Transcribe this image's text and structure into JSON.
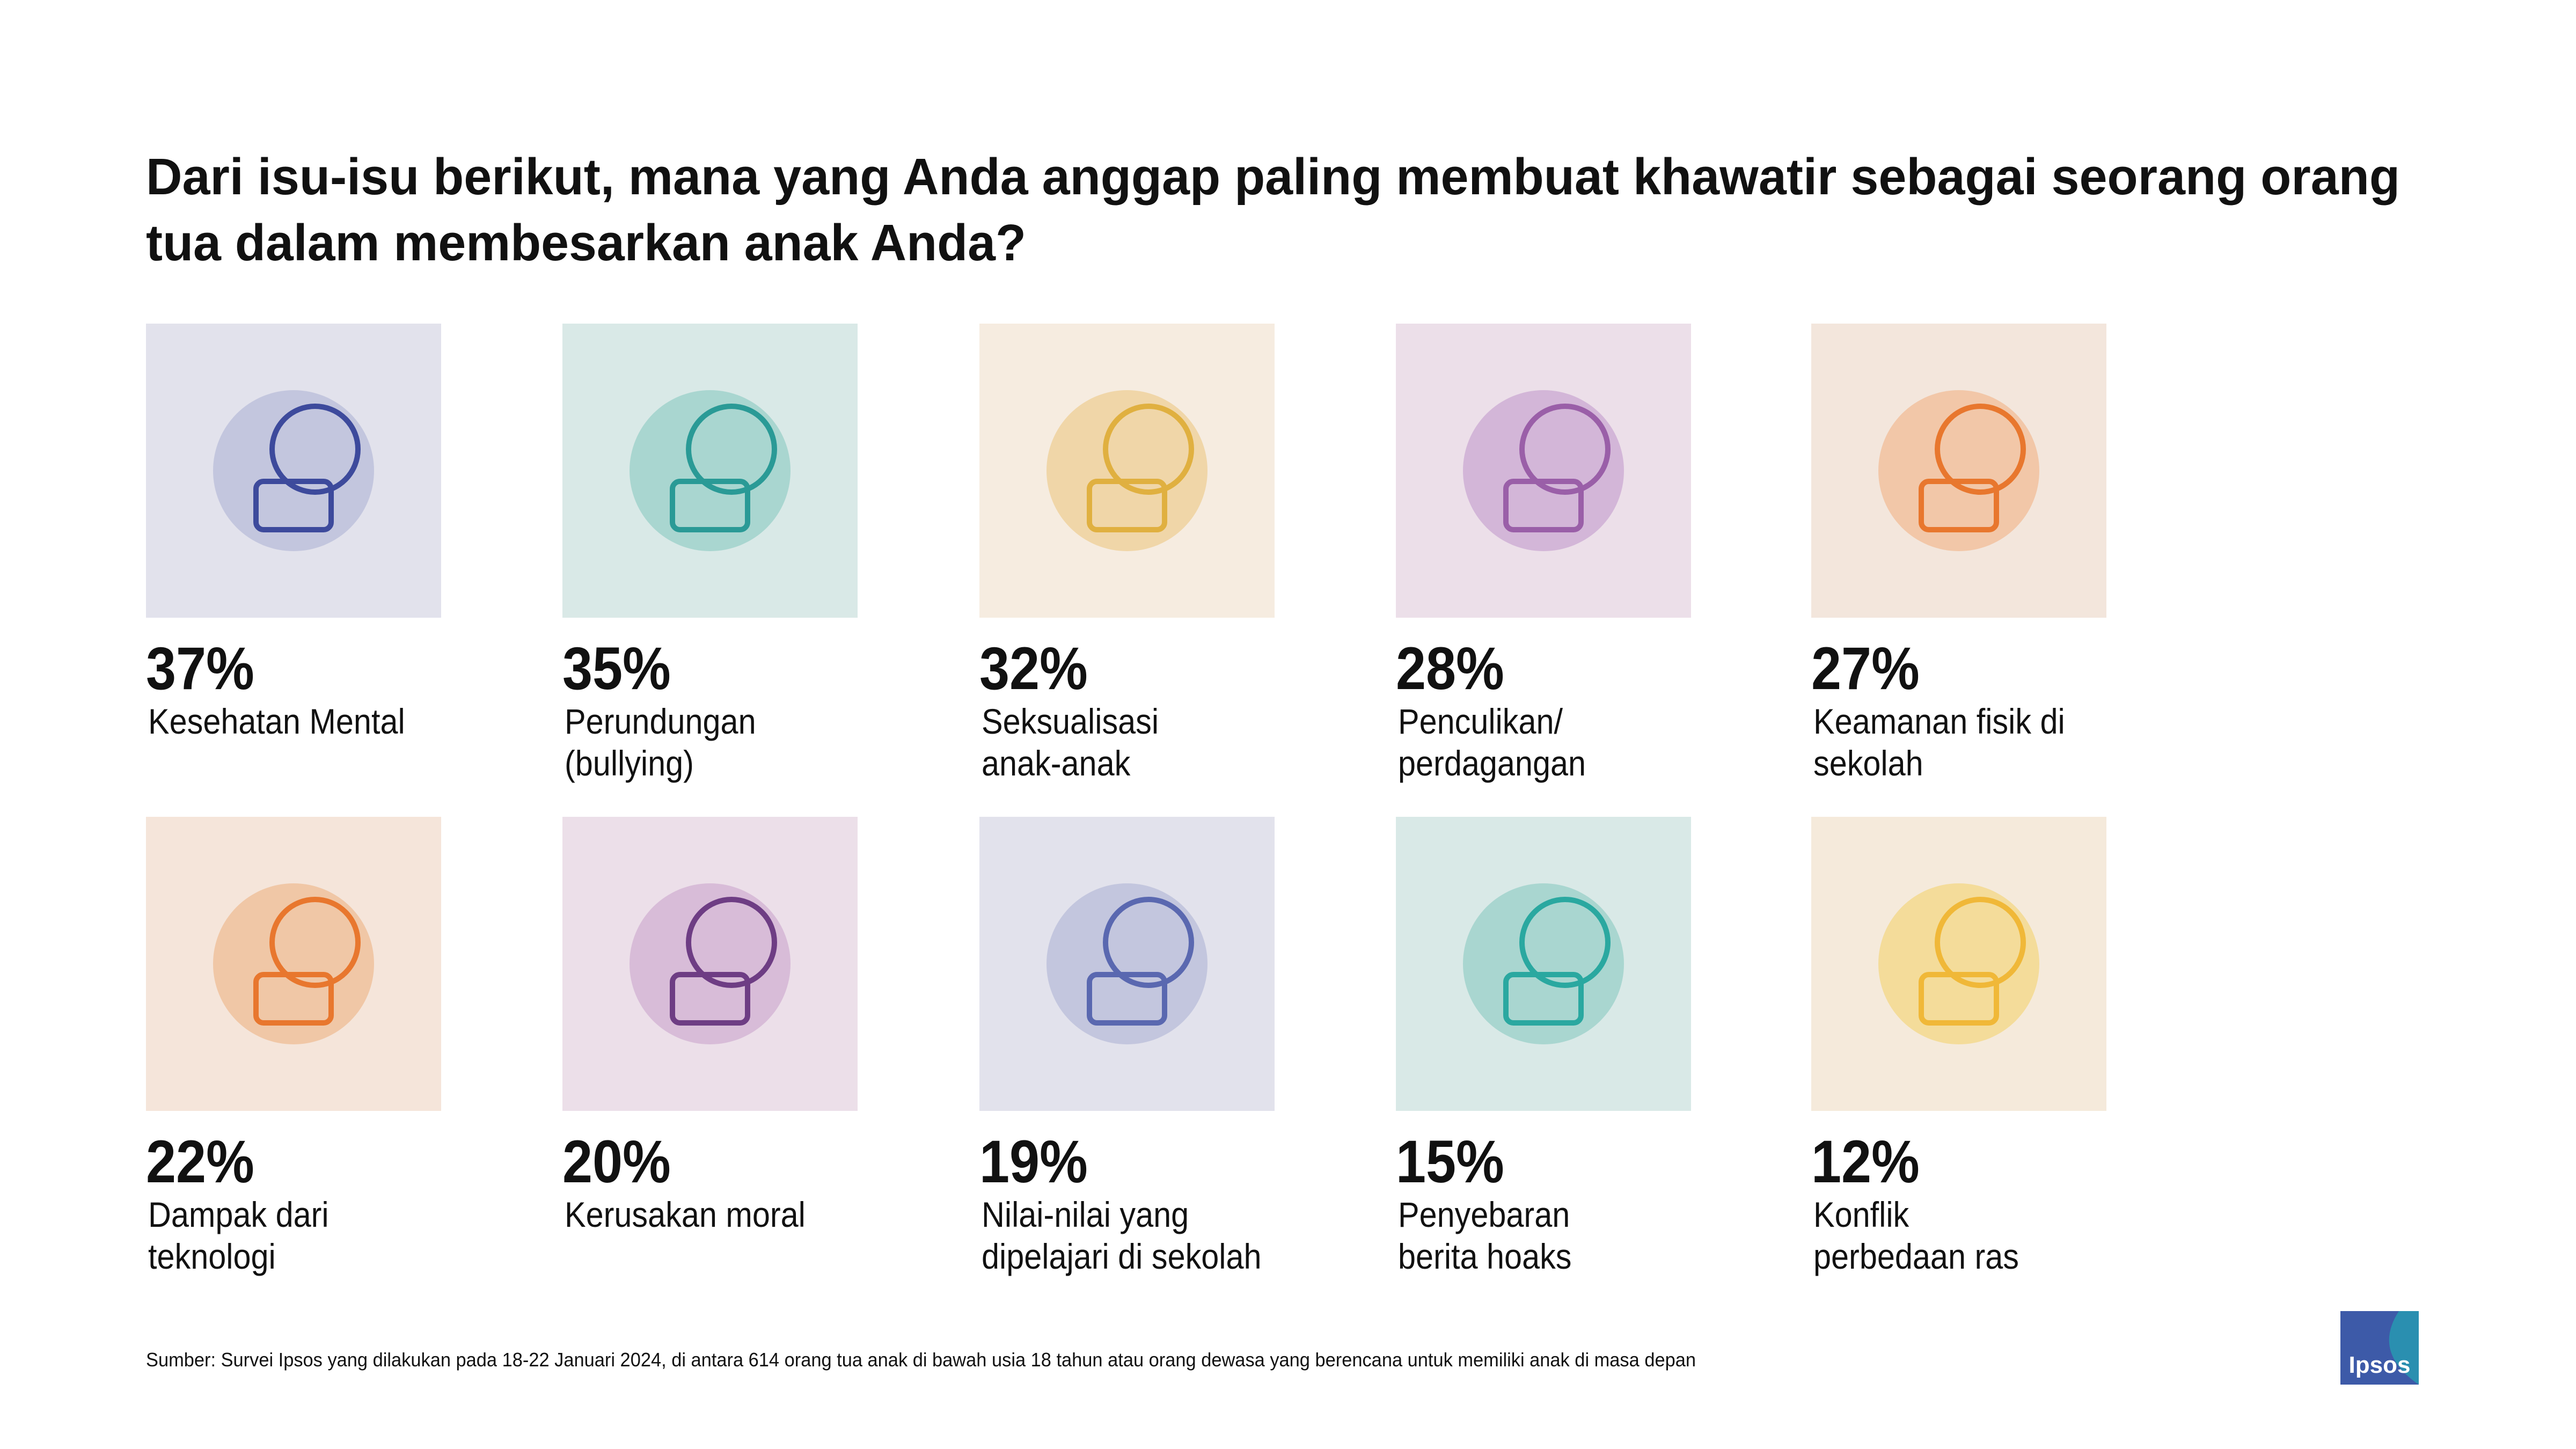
{
  "title": [
    "Dari isu-isu berikut, mana yang Anda anggap paling membuat khawatir sebagai seorang orang",
    "tua dalam membesarkan anak Anda?"
  ],
  "items": [
    {
      "percent": "37%",
      "label": [
        "Kesehatan Mental"
      ]
    },
    {
      "percent": "35%",
      "label": [
        "Perundungan",
        "(bullying)"
      ]
    },
    {
      "percent": "32%",
      "label": [
        "Seksualisasi",
        "anak-anak"
      ]
    },
    {
      "percent": "28%",
      "label": [
        "Penculikan/",
        "perdagangan"
      ]
    },
    {
      "percent": "27%",
      "label": [
        "Keamanan fisik di",
        "sekolah"
      ]
    },
    {
      "percent": "22%",
      "label": [
        "Dampak dari",
        "teknologi"
      ]
    },
    {
      "percent": "20%",
      "label": [
        "Kerusakan moral"
      ]
    },
    {
      "percent": "19%",
      "label": [
        "Nilai-nilai yang",
        "dipelajari di sekolah"
      ]
    },
    {
      "percent": "15%",
      "label": [
        "Penyebaran",
        "berita hoaks"
      ]
    },
    {
      "percent": "12%",
      "label": [
        "Konflik",
        "perbedaan ras"
      ]
    }
  ],
  "source": "Sumber: Survei Ipsos yang dilakukan pada 18-22 Januari 2024, di antara 614 orang tua anak di bawah usia 18 tahun atau orang dewasa yang berencana untuk memiliki anak di masa depan",
  "logo": "Ipsos"
}
